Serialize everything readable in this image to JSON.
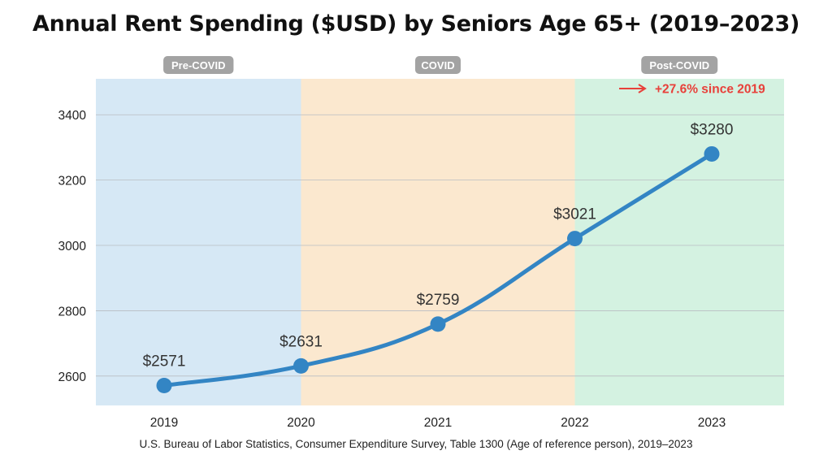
{
  "chart_data": {
    "type": "line",
    "title": "Annual Rent Spending ($USD) by Seniors Age 65+ (2019–2023)",
    "x": [
      "2019",
      "2020",
      "2021",
      "2022",
      "2023"
    ],
    "series": [
      {
        "values": [
          2571,
          2631,
          2759,
          3021,
          3280
        ],
        "color": "#3385c4"
      }
    ],
    "data_labels": [
      "$2571",
      "$2631",
      "$2759",
      "$3021",
      "$3280"
    ],
    "ylim": [
      2510,
      3510
    ],
    "yticks": [
      2600,
      2800,
      3000,
      3200,
      3400
    ],
    "grid": true,
    "periods": [
      {
        "label": "Pre-COVID",
        "from": "2019",
        "to": "2020",
        "color": "#d6e8f5"
      },
      {
        "label": "COVID",
        "from": "2020",
        "to": "2022",
        "color": "#fbe8cf"
      },
      {
        "label": "Post-COVID",
        "from": "2022",
        "to": "2023",
        "color": "#d4f2e1"
      }
    ],
    "annotation": {
      "text": "+27.6% since 2019",
      "color": "#e8403a"
    }
  },
  "source": "U.S. Bureau of Labor Statistics, Consumer Expenditure Survey, Table 1300 (Age of reference person), 2019–2023"
}
